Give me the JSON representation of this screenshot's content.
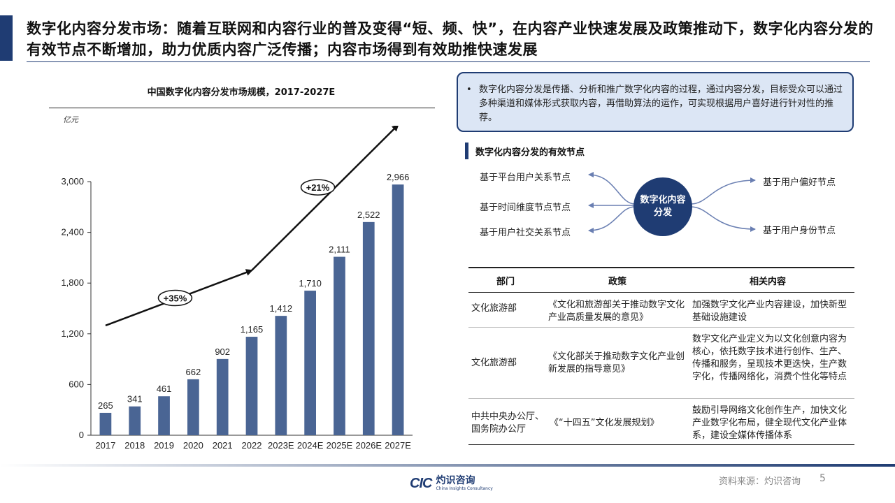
{
  "header": {
    "title": "数字化内容分发市场：随着互联网和内容行业的普及变得“短、频、快”，在内容产业快速发展及政策推动下，数字化内容分发的有效节点不断增加，助力优质内容广泛传播；内容市场得到有效助推快速发展"
  },
  "chart_data": {
    "type": "bar",
    "title": "中国数字化内容分发市场规模，2017-2027E",
    "ylabel": "亿元",
    "xlabel": "",
    "categories": [
      "2017",
      "2018",
      "2019",
      "2020",
      "2021",
      "2022",
      "2023E",
      "2024E",
      "2025E",
      "2026E",
      "2027E"
    ],
    "values": [
      265,
      341,
      461,
      662,
      902,
      1165,
      1412,
      1710,
      2111,
      2522,
      2966
    ],
    "data_labels": [
      "265",
      "341",
      "461",
      "662",
      "902",
      "1,165",
      "1,412",
      "1,710",
      "2,111",
      "2,522",
      "2,966"
    ],
    "ylim": [
      0,
      3000
    ],
    "yticks": [
      0,
      600,
      1200,
      1800,
      2400,
      3000
    ],
    "ytick_labels": [
      "0",
      "600",
      "1,200",
      "1,800",
      "2,400",
      "3,000"
    ],
    "bar_color": "#4a6594",
    "grid": false,
    "annotations": [
      {
        "label": "+35%",
        "from_category": "2017",
        "to_category": "2022"
      },
      {
        "label": "+21%",
        "from_category": "2022",
        "to_category": "2027E"
      }
    ]
  },
  "info": {
    "text": "数字化内容分发是传播、分析和推广数字化内容的过程，通过内容分发，目标受众可以通过多种渠道和媒体形式获取内容，再借助算法的运作，可实现根据用户喜好进行针对性的推荐。"
  },
  "nodes_section": {
    "title": "数字化内容分发的有效节点",
    "center": "数字化内容分发",
    "left": [
      "基于平台用户关系节点",
      "基于时间维度节点节点",
      "基于用户社交关系节点"
    ],
    "right": [
      "基于用户偏好节点",
      "基于用户身份节点"
    ]
  },
  "policy_table": {
    "headers": [
      "部门",
      "政策",
      "相关内容"
    ],
    "rows": [
      {
        "dept": "文化旅游部",
        "policy": "《文化和旅游部关于推动数字文化产业高质量发展的意见》",
        "content": "加强数字文化产业内容建设，加快新型基础设施建设"
      },
      {
        "dept": "文化旅游部",
        "policy": "《文化部关于推动数字文化产业创新发展的指导意见》",
        "content": "数字文化产业定义为以文化创意内容为核心，依托数字技术进行创作、生产、传播和服务，呈现技术更迭快，生产数字化，传播网络化，消费个性化等特点"
      },
      {
        "dept": "中共中央办公厅、国务院办公厅",
        "policy": "《“十四五”文化发展规划》",
        "content": "鼓励引导网络文化创作生产，加快文化产业数字化布局，健全现代文化产业体系，建设全媒体传播体系"
      }
    ]
  },
  "footer": {
    "logo_mark": "CIC",
    "logo_name": "灼识咨询",
    "logo_sub": "China Insights Consultancy",
    "source": "资料来源：灼识咨询",
    "page": "5"
  },
  "colors": {
    "brand": "#1f3c73",
    "bar": "#4a6594",
    "info_bg": "#dce6f5"
  }
}
